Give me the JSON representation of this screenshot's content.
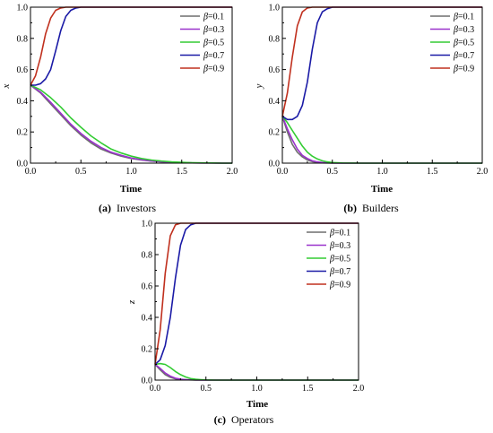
{
  "chart_data": [
    {
      "id": "investors",
      "type": "line",
      "caption_letter": "(a)",
      "caption_text": "Investors",
      "xlabel": "Time",
      "ylabel": "x",
      "xlim": [
        0,
        2.0
      ],
      "ylim": [
        0,
        1.0
      ],
      "xticks": [
        "0.0",
        "0.5",
        "1.0",
        "1.5",
        "2.0"
      ],
      "yticks": [
        "0.0",
        "0.2",
        "0.4",
        "0.6",
        "0.8",
        "1.0"
      ],
      "legend_position": "top-right",
      "series": [
        {
          "name": "β=0.1",
          "color": "#6e6e6e",
          "x": [
            0,
            0.1,
            0.2,
            0.3,
            0.4,
            0.5,
            0.6,
            0.7,
            0.8,
            0.9,
            1.0,
            1.1,
            1.2,
            1.3,
            1.4,
            1.5,
            1.6,
            1.7,
            1.8,
            1.9,
            2.0
          ],
          "y": [
            0.5,
            0.45,
            0.38,
            0.31,
            0.24,
            0.18,
            0.13,
            0.09,
            0.065,
            0.045,
            0.03,
            0.02,
            0.013,
            0.008,
            0.005,
            0.003,
            0.002,
            0.001,
            0.001,
            0,
            0
          ]
        },
        {
          "name": "β=0.3",
          "color": "#9932cc",
          "x": [
            0,
            0.1,
            0.2,
            0.3,
            0.4,
            0.5,
            0.6,
            0.7,
            0.8,
            0.9,
            1.0,
            1.1,
            1.2,
            1.3,
            1.4,
            1.5,
            1.6,
            1.7,
            1.8,
            1.9,
            2.0
          ],
          "y": [
            0.5,
            0.455,
            0.39,
            0.32,
            0.25,
            0.19,
            0.14,
            0.1,
            0.07,
            0.05,
            0.033,
            0.022,
            0.014,
            0.009,
            0.006,
            0.004,
            0.002,
            0.001,
            0.001,
            0,
            0
          ]
        },
        {
          "name": "β=0.5",
          "color": "#33cc33",
          "x": [
            0,
            0.1,
            0.2,
            0.3,
            0.4,
            0.5,
            0.6,
            0.7,
            0.8,
            0.9,
            1.0,
            1.1,
            1.2,
            1.3,
            1.4,
            1.5,
            1.6,
            1.7,
            1.8,
            1.9,
            2.0
          ],
          "y": [
            0.5,
            0.47,
            0.42,
            0.36,
            0.29,
            0.23,
            0.175,
            0.13,
            0.09,
            0.065,
            0.045,
            0.03,
            0.02,
            0.013,
            0.008,
            0.005,
            0.003,
            0.002,
            0.001,
            0,
            0
          ]
        },
        {
          "name": "β=0.7",
          "color": "#1a1aa6",
          "x": [
            0,
            0.05,
            0.1,
            0.15,
            0.2,
            0.25,
            0.3,
            0.35,
            0.4,
            0.45,
            0.5,
            0.6,
            0.8,
            1.0,
            1.5,
            2.0
          ],
          "y": [
            0.5,
            0.5,
            0.51,
            0.54,
            0.6,
            0.72,
            0.85,
            0.94,
            0.98,
            0.995,
            1.0,
            1.0,
            1.0,
            1.0,
            1.0,
            1.0
          ]
        },
        {
          "name": "β=0.9",
          "color": "#c0301e",
          "x": [
            0,
            0.05,
            0.1,
            0.15,
            0.2,
            0.25,
            0.3,
            0.35,
            0.4,
            0.5,
            0.6,
            0.8,
            1.0,
            1.5,
            2.0
          ],
          "y": [
            0.5,
            0.56,
            0.68,
            0.83,
            0.93,
            0.98,
            0.995,
            1.0,
            1.0,
            1.0,
            1.0,
            1.0,
            1.0,
            1.0,
            1.0
          ]
        }
      ]
    },
    {
      "id": "builders",
      "type": "line",
      "caption_letter": "(b)",
      "caption_text": "Builders",
      "xlabel": "Time",
      "ylabel": "y",
      "xlim": [
        0,
        2.0
      ],
      "ylim": [
        0,
        1.0
      ],
      "xticks": [
        "0.0",
        "0.5",
        "1.0",
        "1.5",
        "2.0"
      ],
      "yticks": [
        "0.0",
        "0.2",
        "0.4",
        "0.6",
        "0.8",
        "1.0"
      ],
      "legend_position": "top-right",
      "series": [
        {
          "name": "β=0.1",
          "color": "#6e6e6e",
          "x": [
            0,
            0.05,
            0.1,
            0.15,
            0.2,
            0.25,
            0.3,
            0.35,
            0.4,
            0.5,
            0.6,
            0.8,
            1.0,
            1.5,
            2.0
          ],
          "y": [
            0.3,
            0.2,
            0.12,
            0.07,
            0.04,
            0.02,
            0.01,
            0.005,
            0.002,
            0,
            0,
            0,
            0,
            0,
            0
          ]
        },
        {
          "name": "β=0.3",
          "color": "#9932cc",
          "x": [
            0,
            0.05,
            0.1,
            0.15,
            0.2,
            0.25,
            0.3,
            0.35,
            0.4,
            0.5,
            0.6,
            0.8,
            1.0,
            1.5,
            2.0
          ],
          "y": [
            0.3,
            0.22,
            0.15,
            0.09,
            0.05,
            0.03,
            0.015,
            0.008,
            0.004,
            0.001,
            0,
            0,
            0,
            0,
            0
          ]
        },
        {
          "name": "β=0.5",
          "color": "#33cc33",
          "x": [
            0,
            0.05,
            0.1,
            0.15,
            0.2,
            0.25,
            0.3,
            0.35,
            0.4,
            0.45,
            0.5,
            0.6,
            0.8,
            1.0,
            1.5,
            2.0
          ],
          "y": [
            0.3,
            0.26,
            0.21,
            0.16,
            0.11,
            0.07,
            0.045,
            0.027,
            0.015,
            0.008,
            0.004,
            0.001,
            0,
            0,
            0,
            0
          ]
        },
        {
          "name": "β=0.7",
          "color": "#1a1aa6",
          "x": [
            0,
            0.05,
            0.1,
            0.15,
            0.2,
            0.25,
            0.3,
            0.35,
            0.4,
            0.45,
            0.5,
            0.6,
            0.8,
            1.0,
            1.5,
            2.0
          ],
          "y": [
            0.3,
            0.28,
            0.28,
            0.3,
            0.37,
            0.52,
            0.73,
            0.9,
            0.97,
            0.99,
            1.0,
            1.0,
            1.0,
            1.0,
            1.0,
            1.0
          ]
        },
        {
          "name": "β=0.9",
          "color": "#c0301e",
          "x": [
            0,
            0.05,
            0.1,
            0.15,
            0.2,
            0.25,
            0.3,
            0.35,
            0.4,
            0.5,
            0.6,
            0.8,
            1.0,
            1.5,
            2.0
          ],
          "y": [
            0.3,
            0.45,
            0.68,
            0.88,
            0.97,
            0.995,
            1.0,
            1.0,
            1.0,
            1.0,
            1.0,
            1.0,
            1.0,
            1.0,
            1.0
          ]
        }
      ]
    },
    {
      "id": "operators",
      "type": "line",
      "caption_letter": "(c)",
      "caption_text": "Operators",
      "xlabel": "Time",
      "ylabel": "z",
      "xlim": [
        0,
        2.0
      ],
      "ylim": [
        0,
        1.0
      ],
      "xticks": [
        "0.0",
        "0.5",
        "1.0",
        "1.5",
        "2.0"
      ],
      "yticks": [
        "0.0",
        "0.2",
        "0.4",
        "0.6",
        "0.8",
        "1.0"
      ],
      "legend_position": "top-right",
      "series": [
        {
          "name": "β=0.1",
          "color": "#6e6e6e",
          "x": [
            0,
            0.05,
            0.1,
            0.15,
            0.2,
            0.25,
            0.3,
            0.4,
            0.5,
            0.6,
            0.8,
            1.0,
            1.5,
            2.0
          ],
          "y": [
            0.1,
            0.065,
            0.035,
            0.018,
            0.008,
            0.004,
            0.002,
            0,
            0,
            0,
            0,
            0,
            0,
            0
          ]
        },
        {
          "name": "β=0.3",
          "color": "#9932cc",
          "x": [
            0,
            0.05,
            0.1,
            0.15,
            0.2,
            0.25,
            0.3,
            0.4,
            0.5,
            0.6,
            0.8,
            1.0,
            1.5,
            2.0
          ],
          "y": [
            0.1,
            0.075,
            0.045,
            0.025,
            0.012,
            0.006,
            0.003,
            0.001,
            0,
            0,
            0,
            0,
            0,
            0
          ]
        },
        {
          "name": "β=0.5",
          "color": "#33cc33",
          "x": [
            0,
            0.05,
            0.1,
            0.15,
            0.2,
            0.25,
            0.3,
            0.35,
            0.4,
            0.45,
            0.5,
            0.6,
            0.8,
            1.0,
            1.5,
            2.0
          ],
          "y": [
            0.1,
            0.105,
            0.1,
            0.08,
            0.055,
            0.035,
            0.02,
            0.01,
            0.005,
            0.003,
            0.001,
            0,
            0,
            0,
            0,
            0
          ]
        },
        {
          "name": "β=0.7",
          "color": "#1a1aa6",
          "x": [
            0,
            0.05,
            0.1,
            0.15,
            0.2,
            0.25,
            0.3,
            0.35,
            0.4,
            0.5,
            0.6,
            0.8,
            1.0,
            1.5,
            2.0
          ],
          "y": [
            0.1,
            0.13,
            0.22,
            0.4,
            0.65,
            0.86,
            0.96,
            0.99,
            1.0,
            1.0,
            1.0,
            1.0,
            1.0,
            1.0,
            1.0
          ]
        },
        {
          "name": "β=0.9",
          "color": "#c0301e",
          "x": [
            0,
            0.05,
            0.1,
            0.15,
            0.2,
            0.25,
            0.3,
            0.4,
            0.5,
            0.6,
            0.8,
            1.0,
            1.5,
            2.0
          ],
          "y": [
            0.1,
            0.32,
            0.68,
            0.92,
            0.99,
            1.0,
            1.0,
            1.0,
            1.0,
            1.0,
            1.0,
            1.0,
            1.0,
            1.0
          ]
        }
      ]
    }
  ]
}
